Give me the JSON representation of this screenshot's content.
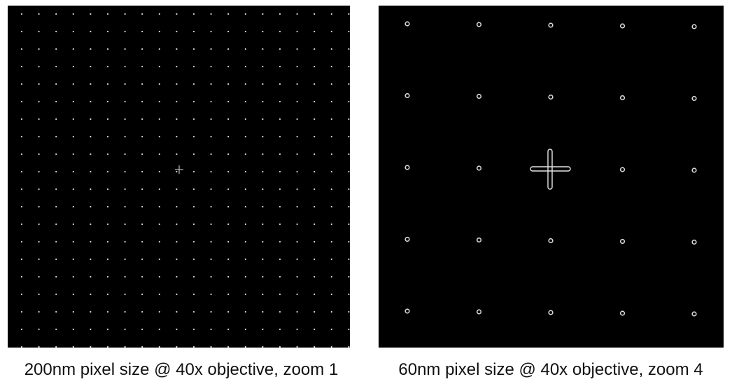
{
  "figure": {
    "left": {
      "caption": "200nm pixel size @ 40x objective, zoom 1",
      "grid_columns": 20,
      "grid_rows": 20
    },
    "right": {
      "caption": "60nm pixel size @ 40x objective, zoom 4",
      "grid_columns": 5,
      "grid_rows": 5
    },
    "colors": {
      "background": "#000000",
      "dots": "#d8d8d8",
      "caption_text": "#111111"
    }
  }
}
